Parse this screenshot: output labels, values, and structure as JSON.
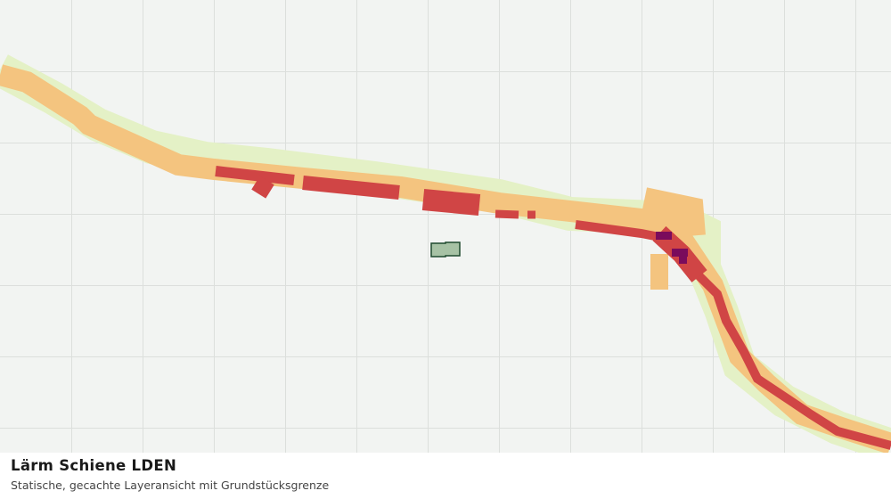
{
  "header": {
    "title": "Lärm Schiene LDEN",
    "subtitle": "Statische, gecachte Layeransicht mit Grundstücksgrenze"
  }
}
